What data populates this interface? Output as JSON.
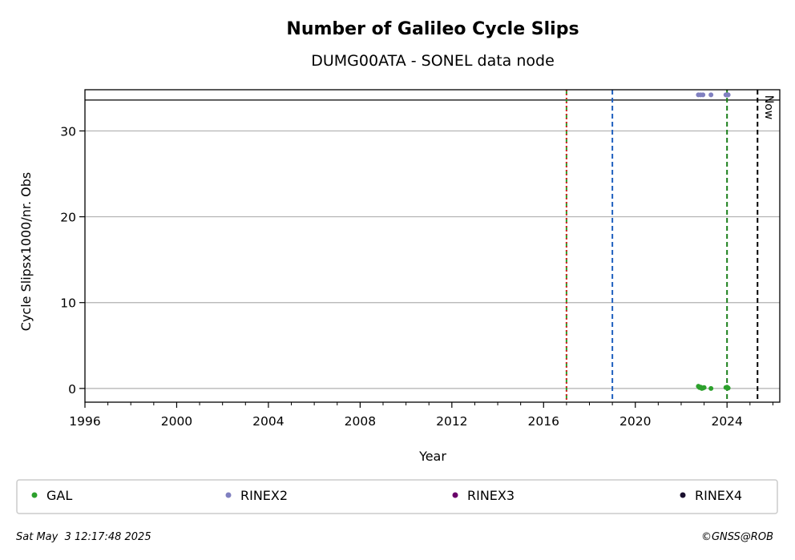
{
  "chart_data": {
    "type": "scatter",
    "title": "Number of Galileo Cycle Slips",
    "subtitle": "DUMG00ATA - SONEL data node",
    "xlabel": "Year",
    "ylabel": "Cycle Slipsx1000/nr. Obs",
    "xlim": [
      1996,
      2026.3
    ],
    "ylim": [
      -1.6,
      34.8
    ],
    "x_ticks": [
      1996,
      2000,
      2004,
      2008,
      2012,
      2016,
      2020,
      2024
    ],
    "x_tick_labels": [
      "1996",
      "2000",
      "2004",
      "2008",
      "2012",
      "2016",
      "2020",
      "2024"
    ],
    "y_ticks": [
      0,
      10,
      20,
      30
    ],
    "y_tick_labels": [
      "0",
      "10",
      "20",
      "30"
    ],
    "grid": "horizontal",
    "top_band_y": 33.6,
    "vertical_lines": [
      {
        "x": 2017.0,
        "color": "#2ca02c",
        "style": "dashed"
      },
      {
        "x": 2017.0,
        "color": "#d62728",
        "style": "dotted"
      },
      {
        "x": 2019.0,
        "color": "#1f5fbf",
        "style": "dashed"
      },
      {
        "x": 2024.0,
        "color": "#1a7f1a",
        "style": "dashed"
      },
      {
        "x": 2025.33,
        "color": "#000000",
        "style": "dashed",
        "label": "Now"
      }
    ],
    "series": [
      {
        "name": "GAL",
        "color": "#2ca02c",
        "points": [
          [
            2022.75,
            0.25
          ],
          [
            2022.8,
            0.1
          ],
          [
            2022.85,
            0.15
          ],
          [
            2022.9,
            0.0
          ],
          [
            2022.95,
            0.05
          ],
          [
            2023.0,
            0.1
          ],
          [
            2023.3,
            0.0
          ],
          [
            2023.95,
            0.1
          ],
          [
            2024.0,
            0.15
          ],
          [
            2024.05,
            0.05
          ]
        ]
      },
      {
        "name": "RINEX2",
        "color": "#8080c0",
        "points": [
          [
            2022.75,
            34.2
          ],
          [
            2022.85,
            34.2
          ],
          [
            2022.95,
            34.2
          ],
          [
            2023.3,
            34.2
          ],
          [
            2023.95,
            34.2
          ],
          [
            2024.0,
            34.2
          ],
          [
            2024.05,
            34.2
          ]
        ]
      },
      {
        "name": "RINEX3",
        "color": "#6a006a",
        "points": []
      },
      {
        "name": "RINEX4",
        "color": "#1a0f2e",
        "points": []
      }
    ],
    "legend": "bottom"
  },
  "footer": {
    "timestamp": "Sat May  3 12:17:48 2025",
    "copyright": "©GNSS@ROB"
  }
}
